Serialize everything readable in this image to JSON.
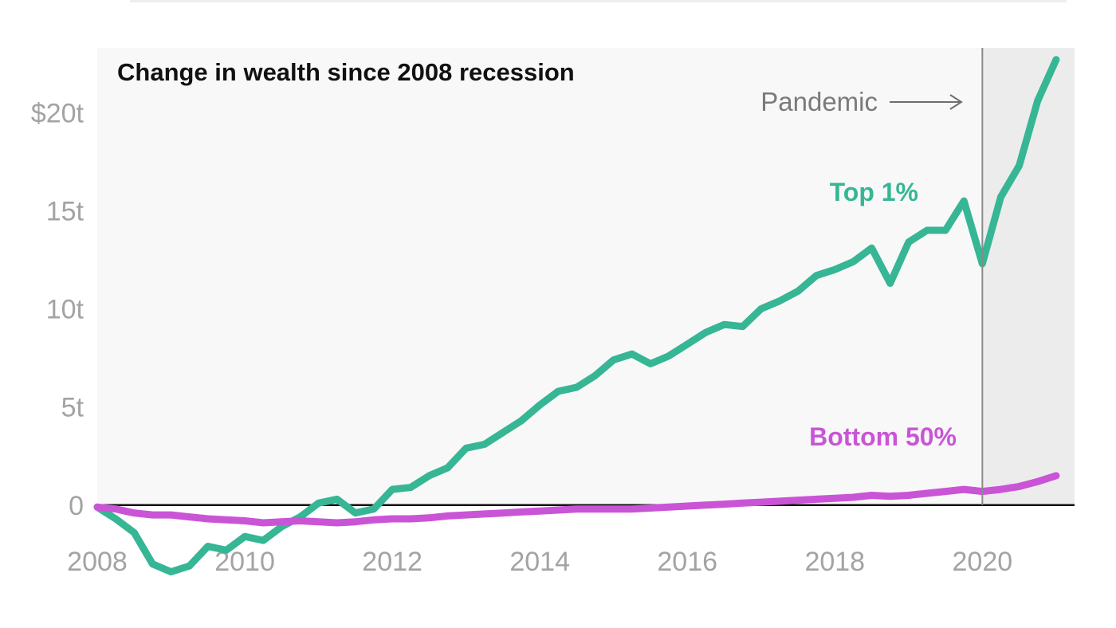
{
  "chart_data": {
    "type": "line",
    "title": "Change in wealth since 2008 recession",
    "xlabel": "",
    "ylabel": "",
    "x_ticks": [
      "2008",
      "2010",
      "2012",
      "2014",
      "2016",
      "2018",
      "2020"
    ],
    "y_ticks": [
      {
        "value": 0,
        "label": "0"
      },
      {
        "value": 5,
        "label": "5t"
      },
      {
        "value": 10,
        "label": "10t"
      },
      {
        "value": 15,
        "label": "15t"
      },
      {
        "value": 20,
        "label": "$20t"
      }
    ],
    "xlim": [
      2008,
      2021.25
    ],
    "ylim": [
      -3.5,
      23.3
    ],
    "grid": false,
    "annotations": [
      {
        "text": "Pandemic",
        "x": 2020.0,
        "type": "vertical-line-with-shaded-region"
      }
    ],
    "colors": {
      "top": "#36b694",
      "bottom": "#c955d6",
      "plot_bg": "#f8f8f8",
      "shade_bg": "#ececec"
    },
    "series": [
      {
        "name": "Top 1%",
        "x": [
          2008.0,
          2008.25,
          2008.5,
          2008.75,
          2009.0,
          2009.25,
          2009.5,
          2009.75,
          2010.0,
          2010.25,
          2010.5,
          2010.75,
          2011.0,
          2011.25,
          2011.5,
          2011.75,
          2012.0,
          2012.25,
          2012.5,
          2012.75,
          2013.0,
          2013.25,
          2013.5,
          2013.75,
          2014.0,
          2014.25,
          2014.5,
          2014.75,
          2015.0,
          2015.25,
          2015.5,
          2015.75,
          2016.0,
          2016.25,
          2016.5,
          2016.75,
          2017.0,
          2017.25,
          2017.5,
          2017.75,
          2018.0,
          2018.25,
          2018.5,
          2018.75,
          2019.0,
          2019.25,
          2019.5,
          2019.75,
          2020.0,
          2020.25,
          2020.5,
          2020.75,
          2021.0
        ],
        "values": [
          -0.1,
          -0.7,
          -1.4,
          -3.0,
          -3.4,
          -3.1,
          -2.1,
          -2.3,
          -1.6,
          -1.8,
          -1.1,
          -0.6,
          0.1,
          0.3,
          -0.4,
          -0.2,
          0.8,
          0.9,
          1.5,
          1.9,
          2.9,
          3.1,
          3.7,
          4.3,
          5.1,
          5.8,
          6.0,
          6.6,
          7.4,
          7.7,
          7.2,
          7.6,
          8.2,
          8.8,
          9.2,
          9.1,
          10.0,
          10.4,
          10.9,
          11.7,
          12.0,
          12.4,
          13.1,
          11.3,
          13.4,
          14.0,
          14.0,
          15.5,
          12.3,
          15.7,
          17.3,
          20.6,
          22.7
        ]
      },
      {
        "name": "Bottom 50%",
        "x": [
          2008.0,
          2008.25,
          2008.5,
          2008.75,
          2009.0,
          2009.25,
          2009.5,
          2009.75,
          2010.0,
          2010.25,
          2010.5,
          2010.75,
          2011.0,
          2011.25,
          2011.5,
          2011.75,
          2012.0,
          2012.25,
          2012.5,
          2012.75,
          2013.0,
          2013.25,
          2013.5,
          2013.75,
          2014.0,
          2014.25,
          2014.5,
          2014.75,
          2015.0,
          2015.25,
          2015.5,
          2015.75,
          2016.0,
          2016.25,
          2016.5,
          2016.75,
          2017.0,
          2017.25,
          2017.5,
          2017.75,
          2018.0,
          2018.25,
          2018.5,
          2018.75,
          2019.0,
          2019.25,
          2019.5,
          2019.75,
          2020.0,
          2020.25,
          2020.5,
          2020.75,
          2021.0
        ],
        "values": [
          -0.1,
          -0.2,
          -0.4,
          -0.5,
          -0.5,
          -0.6,
          -0.7,
          -0.75,
          -0.8,
          -0.9,
          -0.85,
          -0.8,
          -0.85,
          -0.9,
          -0.85,
          -0.75,
          -0.7,
          -0.7,
          -0.65,
          -0.55,
          -0.5,
          -0.45,
          -0.4,
          -0.35,
          -0.3,
          -0.25,
          -0.2,
          -0.2,
          -0.2,
          -0.2,
          -0.15,
          -0.1,
          -0.05,
          0.0,
          0.05,
          0.1,
          0.15,
          0.2,
          0.25,
          0.3,
          0.35,
          0.4,
          0.5,
          0.45,
          0.5,
          0.6,
          0.7,
          0.8,
          0.7,
          0.8,
          0.95,
          1.2,
          1.5
        ]
      }
    ]
  }
}
